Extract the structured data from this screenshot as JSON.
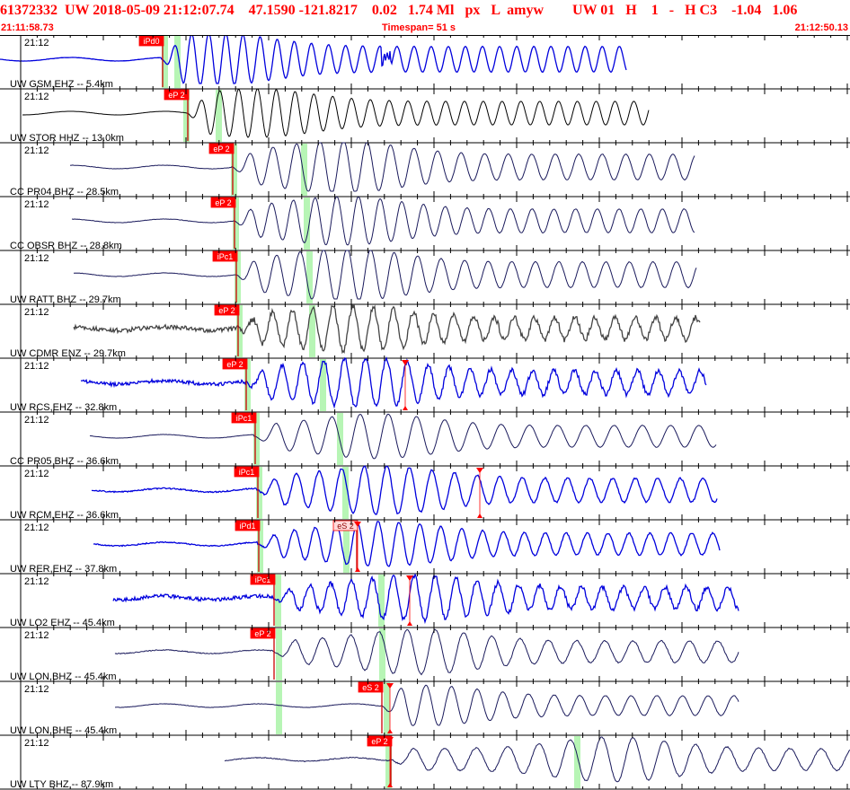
{
  "header": {
    "title_line": "61372332  UW 2018-05-09 21:12:07.74    47.1590 -121.8217    0.02   1.74 Ml   px   L  amyw        UW 01   H    1   -   H C3    -1.04   1.06",
    "start_time": "21:11:58.73",
    "timespan_label": "Timespan=  51 s",
    "end_time": "21:12:50.13"
  },
  "colors": {
    "header_text": "#ff0000",
    "pick_box": "#ff0000",
    "pick_line": "#cc0000",
    "highlight": "#b7f5b5",
    "trace_blue": "#0000dd",
    "trace_black": "#000000",
    "trace_navy": "#1a1a5c",
    "trace_gray": "#444444",
    "axis": "#000000"
  },
  "time_axis": {
    "minute_label": "21:12"
  },
  "traces": [
    {
      "station_label": "UW GSM,EHZ -- 5.4km",
      "time_label": "21:12",
      "picks": [
        {
          "label": "iPd0",
          "style": "filled",
          "marker": false
        }
      ],
      "trace_color": "blue"
    },
    {
      "station_label": "UW STOR HHZ -- 13.0km",
      "time_label": "21:12",
      "picks": [
        {
          "label": "eP 2",
          "style": "filled",
          "marker": false
        }
      ],
      "trace_color": "black"
    },
    {
      "station_label": "CC PR04 BHZ -- 28.5km",
      "time_label": "21:12",
      "picks": [
        {
          "label": "eP 2",
          "style": "filled",
          "marker": false
        }
      ],
      "trace_color": "navy"
    },
    {
      "station_label": "CC OBSR BHZ -- 28.8km",
      "time_label": "21:12",
      "picks": [
        {
          "label": "eP 2",
          "style": "filled",
          "marker": false
        }
      ],
      "trace_color": "navy"
    },
    {
      "station_label": "UW RATT BHZ -- 29.7km",
      "time_label": "21:12",
      "picks": [
        {
          "label": "iPc1",
          "style": "filled",
          "marker": false
        }
      ],
      "trace_color": "navy"
    },
    {
      "station_label": "UW CDMR ENZ -- 29.7km",
      "time_label": "21:12",
      "picks": [
        {
          "label": "eP 2",
          "style": "filled",
          "marker": false
        }
      ],
      "trace_color": "gray"
    },
    {
      "station_label": "UW RCS,EHZ -- 32.8km",
      "time_label": "21:12",
      "picks": [
        {
          "label": "eP 2",
          "style": "filled",
          "marker": true
        }
      ],
      "trace_color": "blue"
    },
    {
      "station_label": "CC PR05 BHZ -- 36.6km",
      "time_label": "21:12",
      "picks": [
        {
          "label": "iPc1",
          "style": "filled",
          "marker": false
        }
      ],
      "trace_color": "navy"
    },
    {
      "station_label": "UW RCM,EHZ -- 36.6km",
      "time_label": "21:12",
      "picks": [
        {
          "label": "iPc1",
          "style": "filled",
          "marker": true
        }
      ],
      "trace_color": "blue"
    },
    {
      "station_label": "UW RER,EHZ -- 37.8km",
      "time_label": "21:12",
      "picks": [
        {
          "label": "iPd1",
          "style": "filled",
          "marker": false
        },
        {
          "label": "eS 2",
          "style": "outline",
          "marker": true
        }
      ],
      "trace_color": "blue"
    },
    {
      "station_label": "UW LO2 EHZ -- 45.4km",
      "time_label": "21:12",
      "picks": [
        {
          "label": "iPc1",
          "style": "filled",
          "marker": true
        }
      ],
      "trace_color": "blue"
    },
    {
      "station_label": "UW LON,BHZ -- 45.4km",
      "time_label": "21:12",
      "picks": [
        {
          "label": "eP 2",
          "style": "filled",
          "marker": false
        }
      ],
      "trace_color": "navy"
    },
    {
      "station_label": "UW LON,BHE -- 45.4km",
      "time_label": "21:12",
      "picks": [
        {
          "label": "eS 2",
          "style": "filled",
          "marker": true
        }
      ],
      "trace_color": "navy"
    },
    {
      "station_label": "UW LTY BHZ -- 87.9km",
      "time_label": "21:12",
      "picks": [
        {
          "label": "eP 2",
          "style": "filled",
          "marker": true
        }
      ],
      "trace_color": "navy"
    }
  ]
}
